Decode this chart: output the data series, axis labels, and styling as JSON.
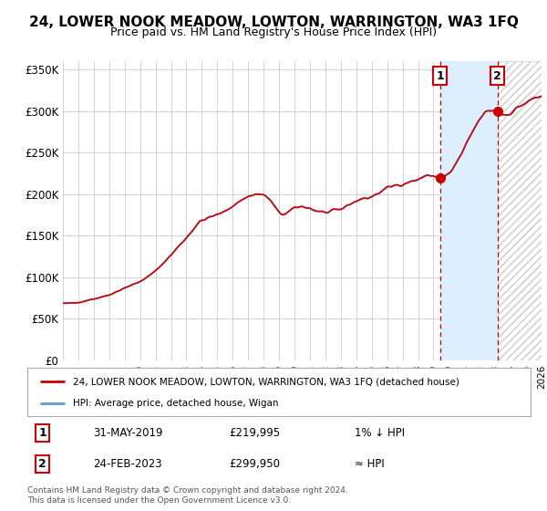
{
  "title": "24, LOWER NOOK MEADOW, LOWTON, WARRINGTON, WA3 1FQ",
  "subtitle": "Price paid vs. HM Land Registry's House Price Index (HPI)",
  "x_start_year": 1995,
  "x_end_year": 2026,
  "y_ticks": [
    0,
    50000,
    100000,
    150000,
    200000,
    250000,
    300000,
    350000
  ],
  "y_labels": [
    "£0",
    "£50K",
    "£100K",
    "£150K",
    "£200K",
    "£250K",
    "£300K",
    "£350K"
  ],
  "hpi_color": "#6699cc",
  "price_color": "#cc0000",
  "marker1_date": "31-MAY-2019",
  "marker1_price": 219995,
  "marker1_x": 2019.42,
  "marker2_date": "24-FEB-2023",
  "marker2_price": 299950,
  "marker2_x": 2023.15,
  "marker1_label": "1% ↓ HPI",
  "marker2_label": "≈ HPI",
  "legend_line1": "24, LOWER NOOK MEADOW, LOWTON, WARRINGTON, WA3 1FQ (detached house)",
  "legend_line2": "HPI: Average price, detached house, Wigan",
  "footnote": "Contains HM Land Registry data © Crown copyright and database right 2024.\nThis data is licensed under the Open Government Licence v3.0.",
  "background_color": "#ffffff",
  "grid_color": "#cccccc",
  "shade_color": "#ddeeff",
  "hatch_color": "#cccccc"
}
